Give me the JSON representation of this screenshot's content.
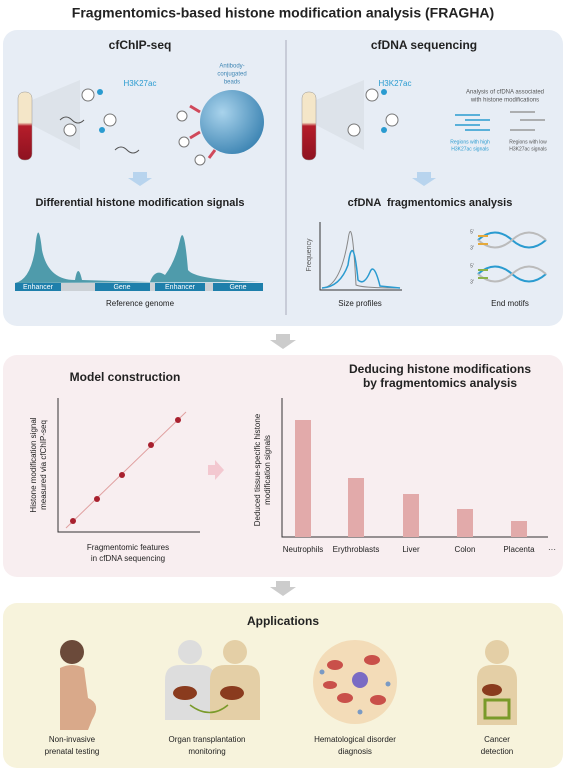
{
  "title": "Fragmentomics-based histone modification analysis (FRAGHA)",
  "chip": {
    "title": "cfChIP-seq",
    "mark": "H3K27ac",
    "beads": [
      "Antibody-",
      "conjugated",
      "beads"
    ],
    "signals_title": "Differential histone modification signals",
    "track": [
      "Enhancer",
      "Gene",
      "Enhancer",
      "Gene"
    ],
    "genome": "Reference genome"
  },
  "seq": {
    "title": "cfDNA sequencing",
    "mark": "H3K27ac",
    "analysis": [
      "Analysis of cfDNA associated",
      "with histone modifications"
    ],
    "high": [
      "Regions with high",
      "H3K27ac signals"
    ],
    "low": [
      "Regions with low",
      "H3K27ac signals"
    ],
    "frag_title": "cfDNA  fragmentomics analysis",
    "frequency": "Frequency",
    "size": "Size profiles",
    "ends": [
      "5'",
      "3'",
      "5'",
      "3'"
    ],
    "motifs": "End motifs"
  },
  "model": {
    "title": "Model construction",
    "y_label": [
      "Histone modification signal",
      "measured via cfChIP-seq"
    ],
    "x_label": [
      "Fragmentomic features",
      "in cfDNA sequencing"
    ]
  },
  "deduce": {
    "title": [
      "Deducing histone modifications",
      "by fragmentomics analysis"
    ],
    "y_label": [
      "Deduced tissue-specific histone",
      "modification signals"
    ],
    "categories": [
      "Neutrophils",
      "Erythroblasts",
      "Liver",
      "Colon",
      "Placenta",
      "···"
    ]
  },
  "applications": {
    "title": "Applications",
    "items": [
      [
        "Non-invasive",
        "prenatal testing"
      ],
      [
        "Organ transplantation",
        "monitoring"
      ],
      [
        "Hematological disorder",
        "diagnosis"
      ],
      [
        "Cancer",
        "detection"
      ]
    ]
  }
}
